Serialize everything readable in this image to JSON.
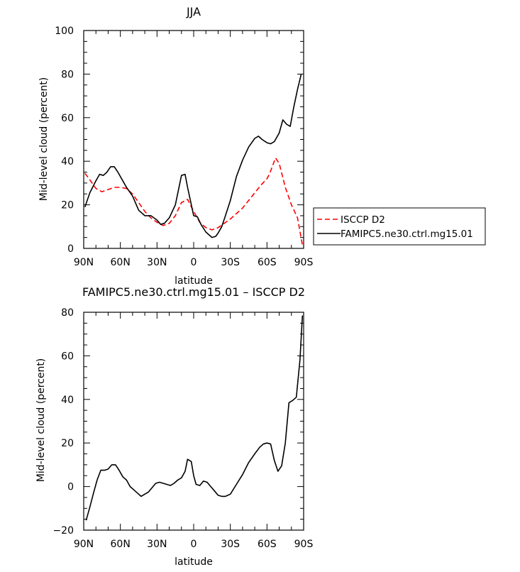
{
  "chart_data": [
    {
      "type": "line",
      "title": "JJA",
      "xlabel": "latitude",
      "ylabel": "Mid-level cloud (percent)",
      "xlim": [
        90,
        -90
      ],
      "ylim": [
        0,
        100
      ],
      "xticks": [
        90,
        60,
        30,
        0,
        -30,
        -60,
        -90
      ],
      "xtick_labels": [
        "90N",
        "60N",
        "30N",
        "0",
        "30S",
        "60S",
        "90S"
      ],
      "yticks": [
        0,
        20,
        40,
        60,
        80,
        100
      ],
      "ytick_labels": [
        "0",
        "20",
        "40",
        "60",
        "80",
        "100"
      ],
      "legend_position": "right",
      "grid": false,
      "series": [
        {
          "name": "ISCCP D2",
          "color": "#ff0000",
          "dash": "dashed",
          "x": [
            89,
            85,
            80,
            75,
            70,
            65,
            60,
            55,
            50,
            45,
            40,
            35,
            30,
            25,
            20,
            15,
            10,
            5,
            0,
            -5,
            -10,
            -15,
            -20,
            -25,
            -30,
            -35,
            -40,
            -45,
            -50,
            -55,
            -60,
            -62,
            -65,
            -67,
            -70,
            -75,
            -80,
            -85,
            -89
          ],
          "y": [
            34.5,
            31.5,
            27.5,
            26,
            27,
            28,
            28,
            27.5,
            25,
            21,
            17,
            14,
            12,
            10.5,
            11.5,
            15,
            21,
            22.5,
            17,
            12,
            9.5,
            8.5,
            9.5,
            11.5,
            13.5,
            16,
            18.5,
            22,
            25.5,
            29,
            32,
            34,
            38.5,
            41.5,
            39,
            28,
            20,
            14,
            1.5
          ]
        },
        {
          "name": "FAMIPC5.ne30.ctrl.mg15.01",
          "color": "#000000",
          "dash": "solid",
          "x": [
            89,
            85,
            80,
            77,
            74,
            71,
            68,
            65,
            62,
            58,
            55,
            50,
            45,
            40,
            35,
            30,
            27,
            24,
            20,
            15,
            10,
            7,
            5,
            0,
            -3,
            -6,
            -10,
            -15,
            -18,
            -20,
            -23,
            -26,
            -30,
            -35,
            -40,
            -45,
            -50,
            -53,
            -56,
            -60,
            -63,
            -66,
            -70,
            -73,
            -76,
            -79,
            -82,
            -85,
            -88
          ],
          "y": [
            19,
            25.5,
            31,
            34,
            33.5,
            35,
            37.5,
            37.5,
            35,
            31,
            28,
            24,
            17.5,
            15,
            15,
            13,
            11,
            11.5,
            14,
            20,
            33.5,
            34,
            28,
            15,
            14.5,
            11,
            7.5,
            5,
            5.5,
            7,
            10,
            15,
            22,
            33,
            40.5,
            46.5,
            50.5,
            51.5,
            50,
            48.5,
            48,
            49,
            53,
            59,
            57,
            56,
            65,
            73,
            80
          ]
        }
      ]
    },
    {
      "type": "line",
      "title": "FAMIPC5.ne30.ctrl.mg15.01 – ISCCP D2",
      "xlabel": "latitude",
      "ylabel": "Mid-level cloud (percent)",
      "xlim": [
        90,
        -90
      ],
      "ylim": [
        -20,
        80
      ],
      "xticks": [
        90,
        60,
        30,
        0,
        -30,
        -60,
        -90
      ],
      "xtick_labels": [
        "90N",
        "60N",
        "30N",
        "0",
        "30S",
        "60S",
        "90S"
      ],
      "yticks": [
        -20,
        0,
        20,
        40,
        60,
        80
      ],
      "ytick_labels": [
        "−20",
        "0",
        "20",
        "40",
        "60",
        "80"
      ],
      "grid": false,
      "series": [
        {
          "color": "#000000",
          "dash": "solid",
          "x": [
            88,
            85,
            82,
            79,
            76,
            73,
            70,
            67,
            64,
            61,
            58,
            55,
            52,
            49,
            46,
            43,
            40,
            37,
            34,
            31,
            28,
            25,
            22,
            19,
            16,
            13,
            10,
            7,
            5,
            2,
            0,
            -2,
            -5,
            -8,
            -11,
            -14,
            -17,
            -20,
            -23,
            -26,
            -30,
            -35,
            -40,
            -45,
            -50,
            -54,
            -57,
            -60,
            -63,
            -66,
            -69,
            -72,
            -75,
            -78,
            -81,
            -84,
            -87,
            -89
          ],
          "y": [
            -15.5,
            -9.5,
            -3,
            3,
            7.5,
            7.5,
            8,
            10,
            10,
            7.5,
            4.5,
            3,
            0,
            -1.5,
            -3,
            -4.5,
            -3.5,
            -2.5,
            -0.5,
            1.5,
            2,
            1.5,
            1,
            0.5,
            1.5,
            3,
            4,
            7,
            12.5,
            11.5,
            5,
            1,
            0.5,
            2.5,
            2,
            0,
            -2,
            -4,
            -4.5,
            -4.5,
            -3.5,
            1,
            5.5,
            11,
            15,
            18,
            19.5,
            20,
            19.5,
            12,
            7,
            9.5,
            20,
            38.5,
            39.5,
            41,
            58,
            78.5
          ]
        }
      ]
    }
  ]
}
